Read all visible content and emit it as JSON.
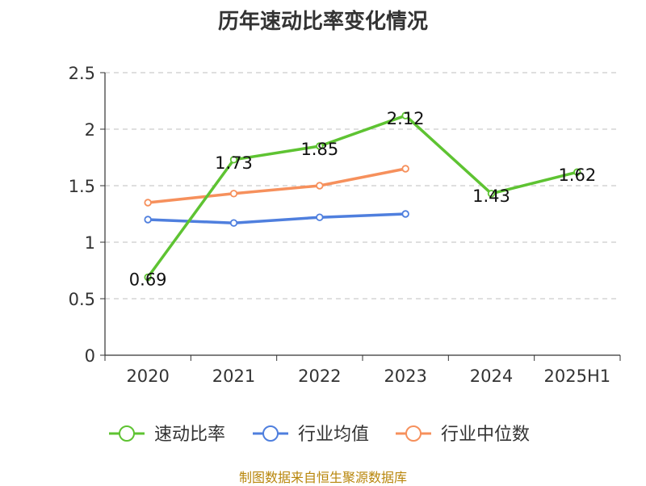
{
  "chart_data": {
    "type": "line",
    "title": "历年速动比率变化情况",
    "categories": [
      "2020",
      "2021",
      "2022",
      "2023",
      "2024",
      "2025H1"
    ],
    "ylim": [
      0,
      2.5
    ],
    "yticks": [
      "0",
      "0.5",
      "1",
      "1.5",
      "2",
      "2.5"
    ],
    "grid": true,
    "legend_position": "bottom",
    "series": [
      {
        "name": "速动比率",
        "color": "#5ec332",
        "values": [
          0.69,
          1.73,
          1.85,
          2.12,
          1.43,
          1.62
        ],
        "labels": [
          "0.69",
          "1.73",
          "1.85",
          "2.12",
          "1.43",
          "1.62"
        ]
      },
      {
        "name": "行业均值",
        "color": "#4f7fde",
        "values": [
          1.2,
          1.17,
          1.22,
          1.25,
          null,
          null
        ]
      },
      {
        "name": "行业中位数",
        "color": "#f6905c",
        "values": [
          1.35,
          1.43,
          1.5,
          1.65,
          null,
          null
        ]
      }
    ]
  },
  "source": "制图数据来自恒生聚源数据库"
}
